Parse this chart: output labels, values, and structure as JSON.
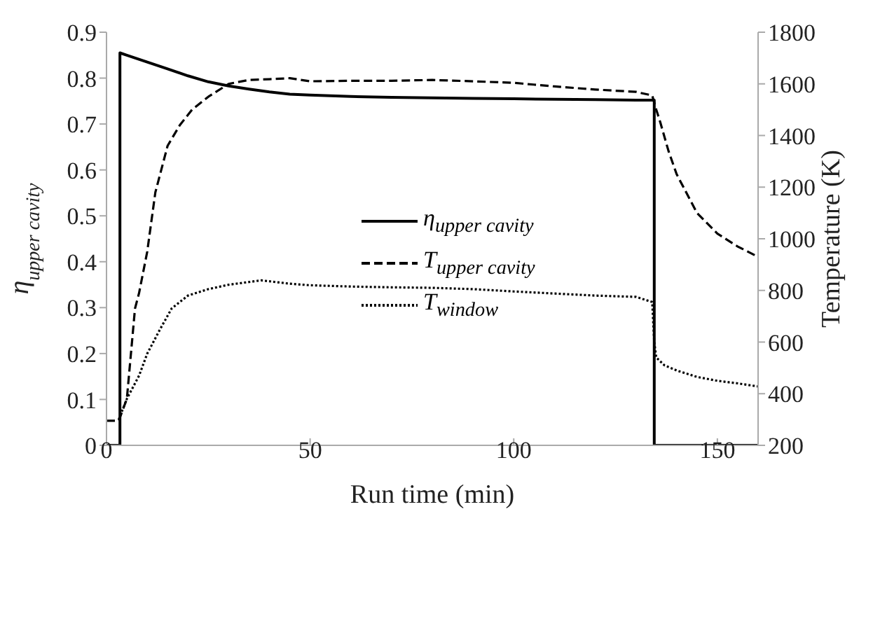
{
  "chart_data": {
    "type": "line",
    "xlabel": "Run time (min)",
    "ylabel": "η$_{upper cavity}$",
    "y2label": "Temperature (K)",
    "xlim": [
      0,
      160
    ],
    "xticks": [
      0,
      50,
      100,
      150
    ],
    "ylim": [
      0,
      0.9
    ],
    "yticks": [
      0,
      0.1,
      0.2,
      0.3,
      0.4,
      0.5,
      0.6,
      0.7,
      0.8,
      0.9
    ],
    "y2lim": [
      200,
      1800
    ],
    "y2ticks": [
      200,
      400,
      600,
      800,
      1000,
      1200,
      1400,
      1600,
      1800
    ],
    "grid": false,
    "legend": "center",
    "marker": "none",
    "series": [
      {
        "name": "η$_{upper cavity}$",
        "color": "#000000",
        "line_style": "solid",
        "x": [
          0,
          3.3,
          3.3,
          5,
          10,
          15,
          20,
          25,
          30,
          35,
          40,
          45,
          50,
          60,
          70,
          80,
          90,
          100,
          110,
          120,
          130,
          134.5,
          134.5,
          140,
          150,
          160
        ],
        "values": [
          0,
          0,
          0.855,
          0.85,
          0.835,
          0.82,
          0.805,
          0.792,
          0.783,
          0.776,
          0.77,
          0.765,
          0.763,
          0.76,
          0.758,
          0.757,
          0.756,
          0.755,
          0.754,
          0.753,
          0.752,
          0.752,
          0,
          0,
          0,
          0
        ]
      },
      {
        "name": "T$_{upper cavity}$",
        "color": "#000000",
        "axis": "y2",
        "line_style": "dashed",
        "x": [
          0,
          3,
          5,
          7,
          8,
          10,
          12,
          15,
          18,
          21,
          25,
          30,
          35,
          40,
          45,
          50,
          60,
          70,
          80,
          90,
          100,
          110,
          120,
          130,
          134,
          135,
          136,
          138,
          140,
          145,
          150,
          155,
          160
        ],
        "values": [
          295,
          295,
          380,
          730,
          790,
          950,
          1180,
          1360,
          1440,
          1500,
          1550,
          1600,
          1615,
          1618,
          1622,
          1610,
          1612,
          1612,
          1615,
          1610,
          1604,
          1590,
          1578,
          1569,
          1555,
          1500,
          1450,
          1340,
          1250,
          1100,
          1020,
          970,
          930
        ]
      },
      {
        "name": "T$_{window}$",
        "color": "#000000",
        "axis": "y2",
        "line_style": "dotted",
        "x": [
          3,
          5,
          8,
          10,
          13,
          16,
          20,
          25,
          30,
          38,
          45,
          50,
          60,
          70,
          80,
          90,
          100,
          110,
          120,
          130,
          134,
          134.5,
          135,
          137,
          140,
          145,
          150,
          155,
          160
        ],
        "values": [
          300,
          380,
          470,
          555,
          645,
          730,
          780,
          805,
          822,
          839,
          826,
          820,
          815,
          812,
          810,
          805,
          796,
          788,
          780,
          775,
          755,
          600,
          540,
          510,
          490,
          465,
          450,
          440,
          428
        ]
      }
    ]
  }
}
